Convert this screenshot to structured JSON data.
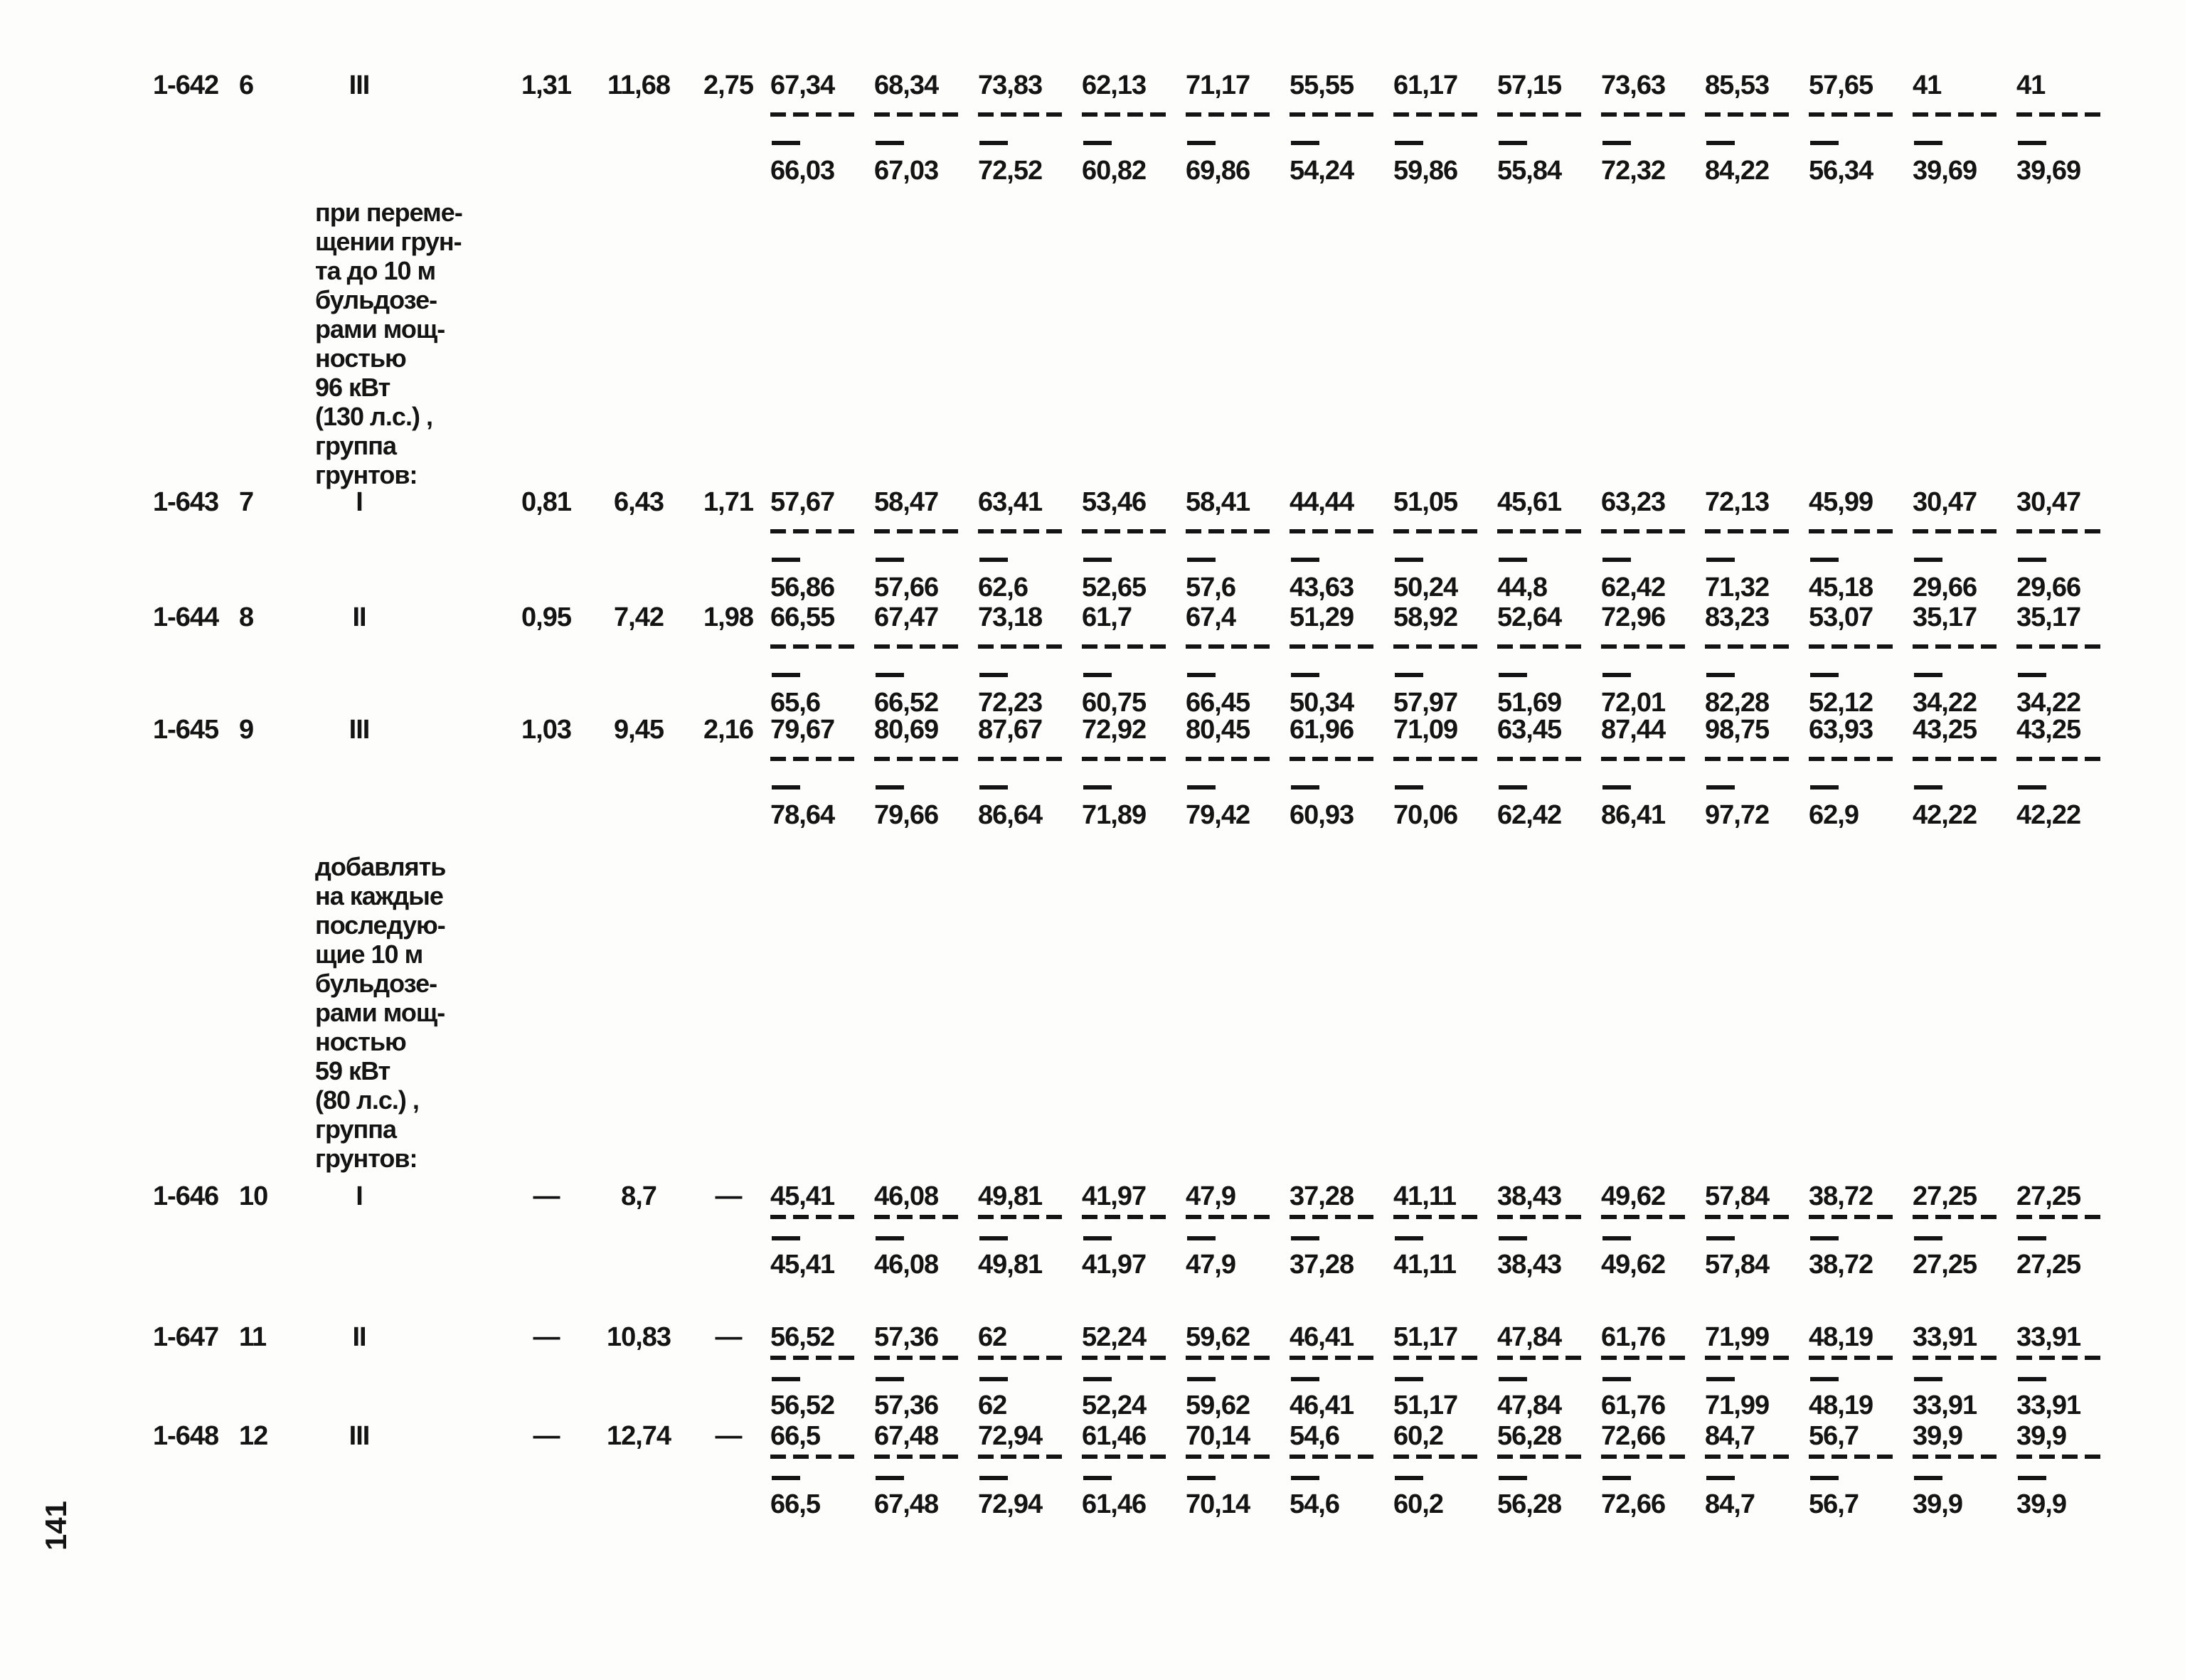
{
  "page_number": "141",
  "table": {
    "rows": [
      {
        "kind": "entry",
        "code": "1-642",
        "item": "6",
        "group": "III",
        "v1": "1,31",
        "v2": "11,68",
        "v3": "2,75",
        "cells": [
          [
            "67,34",
            "66,03"
          ],
          [
            "68,34",
            "67,03"
          ],
          [
            "73,83",
            "72,52"
          ],
          [
            "62,13",
            "60,82"
          ],
          [
            "71,17",
            "69,86"
          ],
          [
            "55,55",
            "54,24"
          ],
          [
            "61,17",
            "59,86"
          ],
          [
            "57,15",
            "55,84"
          ],
          [
            "73,63",
            "72,32"
          ],
          [
            "85,53",
            "84,22"
          ],
          [
            "57,65",
            "56,34"
          ],
          [
            "41",
            "39,69"
          ],
          [
            "41",
            "39,69"
          ]
        ]
      },
      {
        "kind": "note",
        "lines": [
          "при переме-",
          "щении грун-",
          "та до 10 м",
          "бульдозе-",
          "рами мощ-",
          "ностью",
          "96 кВт",
          "(130 л.с.) ,",
          "группа",
          "грунтов:"
        ]
      },
      {
        "kind": "entry",
        "code": "1-643",
        "item": "7",
        "group": "I",
        "v1": "0,81",
        "v2": "6,43",
        "v3": "1,71",
        "cells": [
          [
            "57,67",
            "56,86"
          ],
          [
            "58,47",
            "57,66"
          ],
          [
            "63,41",
            "62,6"
          ],
          [
            "53,46",
            "52,65"
          ],
          [
            "58,41",
            "57,6"
          ],
          [
            "44,44",
            "43,63"
          ],
          [
            "51,05",
            "50,24"
          ],
          [
            "45,61",
            "44,8"
          ],
          [
            "63,23",
            "62,42"
          ],
          [
            "72,13",
            "71,32"
          ],
          [
            "45,99",
            "45,18"
          ],
          [
            "30,47",
            "29,66"
          ],
          [
            "30,47",
            "29,66"
          ]
        ]
      },
      {
        "kind": "entry",
        "code": "1-644",
        "item": "8",
        "group": "II",
        "v1": "0,95",
        "v2": "7,42",
        "v3": "1,98",
        "cells": [
          [
            "66,55",
            "65,6"
          ],
          [
            "67,47",
            "66,52"
          ],
          [
            "73,18",
            "72,23"
          ],
          [
            "61,7",
            "60,75"
          ],
          [
            "67,4",
            "66,45"
          ],
          [
            "51,29",
            "50,34"
          ],
          [
            "58,92",
            "57,97"
          ],
          [
            "52,64",
            "51,69"
          ],
          [
            "72,96",
            "72,01"
          ],
          [
            "83,23",
            "82,28"
          ],
          [
            "53,07",
            "52,12"
          ],
          [
            "35,17",
            "34,22"
          ],
          [
            "35,17",
            "34,22"
          ]
        ]
      },
      {
        "kind": "entry",
        "code": "1-645",
        "item": "9",
        "group": "III",
        "v1": "1,03",
        "v2": "9,45",
        "v3": "2,16",
        "cells": [
          [
            "79,67",
            "78,64"
          ],
          [
            "80,69",
            "79,66"
          ],
          [
            "87,67",
            "86,64"
          ],
          [
            "72,92",
            "71,89"
          ],
          [
            "80,45",
            "79,42"
          ],
          [
            "61,96",
            "60,93"
          ],
          [
            "71,09",
            "70,06"
          ],
          [
            "63,45",
            "62,42"
          ],
          [
            "87,44",
            "86,41"
          ],
          [
            "98,75",
            "97,72"
          ],
          [
            "63,93",
            "62,9"
          ],
          [
            "43,25",
            "42,22"
          ],
          [
            "43,25",
            "42,22"
          ]
        ]
      },
      {
        "kind": "note",
        "lines": [
          "добавлять",
          "на каждые",
          "последую-",
          "щие 10 м",
          "бульдозе-",
          "рами мощ-",
          "ностью",
          "59 кВт",
          "(80 л.с.) ,",
          "группа",
          "грунтов:"
        ]
      },
      {
        "kind": "entry",
        "code": "1-646",
        "item": "10",
        "group": "I",
        "v1": "—",
        "v2": "8,7",
        "v3": "—",
        "cells": [
          [
            "45,41",
            "45,41"
          ],
          [
            "46,08",
            "46,08"
          ],
          [
            "49,81",
            "49,81"
          ],
          [
            "41,97",
            "41,97"
          ],
          [
            "47,9",
            "47,9"
          ],
          [
            "37,28",
            "37,28"
          ],
          [
            "41,11",
            "41,11"
          ],
          [
            "38,43",
            "38,43"
          ],
          [
            "49,62",
            "49,62"
          ],
          [
            "57,84",
            "57,84"
          ],
          [
            "38,72",
            "38,72"
          ],
          [
            "27,25",
            "27,25"
          ],
          [
            "27,25",
            "27,25"
          ]
        ]
      },
      {
        "kind": "entry",
        "code": "1-647",
        "item": "11",
        "group": "II",
        "v1": "—",
        "v2": "10,83",
        "v3": "—",
        "cells": [
          [
            "56,52",
            "56,52"
          ],
          [
            "57,36",
            "57,36"
          ],
          [
            "62",
            "62"
          ],
          [
            "52,24",
            "52,24"
          ],
          [
            "59,62",
            "59,62"
          ],
          [
            "46,41",
            "46,41"
          ],
          [
            "51,17",
            "51,17"
          ],
          [
            "47,84",
            "47,84"
          ],
          [
            "61,76",
            "61,76"
          ],
          [
            "71,99",
            "71,99"
          ],
          [
            "48,19",
            "48,19"
          ],
          [
            "33,91",
            "33,91"
          ],
          [
            "33,91",
            "33,91"
          ]
        ]
      },
      {
        "kind": "entry",
        "code": "1-648",
        "item": "12",
        "group": "III",
        "v1": "—",
        "v2": "12,74",
        "v3": "—",
        "cells": [
          [
            "66,5",
            "66,5"
          ],
          [
            "67,48",
            "67,48"
          ],
          [
            "72,94",
            "72,94"
          ],
          [
            "61,46",
            "61,46"
          ],
          [
            "70,14",
            "70,14"
          ],
          [
            "54,6",
            "54,6"
          ],
          [
            "60,2",
            "60,2"
          ],
          [
            "56,28",
            "56,28"
          ],
          [
            "72,66",
            "72,66"
          ],
          [
            "84,7",
            "84,7"
          ],
          [
            "56,7",
            "56,7"
          ],
          [
            "39,9",
            "39,9"
          ],
          [
            "39,9",
            "39,9"
          ]
        ]
      }
    ]
  }
}
